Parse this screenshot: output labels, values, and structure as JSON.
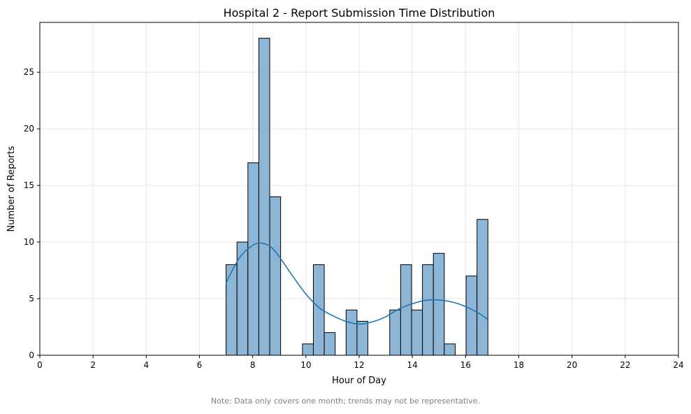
{
  "chart_data": {
    "type": "bar",
    "title": "Hospital 2 - Report Submission Time Distribution",
    "xlabel": "Hour of Day",
    "ylabel": "Number of Reports",
    "xlim": [
      0,
      24
    ],
    "ylim": [
      0,
      29.4
    ],
    "xticks": [
      0,
      2,
      4,
      6,
      8,
      10,
      12,
      14,
      16,
      18,
      20,
      22,
      24
    ],
    "yticks": [
      0,
      5,
      10,
      15,
      20,
      25
    ],
    "grid": true,
    "bar_color": "#8db6d6",
    "bar_edge_color": "#000000",
    "bins": [
      {
        "x0": 7.0,
        "x1": 7.41,
        "count": 8
      },
      {
        "x0": 7.41,
        "x1": 7.82,
        "count": 10
      },
      {
        "x0": 7.82,
        "x1": 8.23,
        "count": 17
      },
      {
        "x0": 8.23,
        "x1": 8.64,
        "count": 28
      },
      {
        "x0": 8.64,
        "x1": 9.05,
        "count": 14
      },
      {
        "x0": 9.05,
        "x1": 9.46,
        "count": 0
      },
      {
        "x0": 9.46,
        "x1": 9.87,
        "count": 0
      },
      {
        "x0": 9.87,
        "x1": 10.28,
        "count": 1
      },
      {
        "x0": 10.28,
        "x1": 10.69,
        "count": 8
      },
      {
        "x0": 10.69,
        "x1": 11.1,
        "count": 2
      },
      {
        "x0": 11.1,
        "x1": 11.51,
        "count": 0
      },
      {
        "x0": 11.51,
        "x1": 11.92,
        "count": 4
      },
      {
        "x0": 11.92,
        "x1": 12.33,
        "count": 3
      },
      {
        "x0": 12.33,
        "x1": 12.74,
        "count": 0
      },
      {
        "x0": 12.74,
        "x1": 13.15,
        "count": 0
      },
      {
        "x0": 13.15,
        "x1": 13.56,
        "count": 4
      },
      {
        "x0": 13.56,
        "x1": 13.97,
        "count": 8
      },
      {
        "x0": 13.97,
        "x1": 14.38,
        "count": 4
      },
      {
        "x0": 14.38,
        "x1": 14.79,
        "count": 8
      },
      {
        "x0": 14.79,
        "x1": 15.2,
        "count": 9
      },
      {
        "x0": 15.2,
        "x1": 15.61,
        "count": 1
      },
      {
        "x0": 15.61,
        "x1": 16.02,
        "count": 0
      },
      {
        "x0": 16.02,
        "x1": 16.43,
        "count": 7
      },
      {
        "x0": 16.43,
        "x1": 16.84,
        "count": 12
      }
    ],
    "kde": {
      "color": "#1f77b4",
      "points": [
        [
          7.0,
          6.4
        ],
        [
          7.5,
          8.6
        ],
        [
          8.0,
          9.7
        ],
        [
          8.35,
          9.9
        ],
        [
          8.8,
          9.3
        ],
        [
          9.5,
          7.0
        ],
        [
          10.0,
          5.4
        ],
        [
          10.5,
          4.2
        ],
        [
          11.0,
          3.5
        ],
        [
          11.5,
          3.0
        ],
        [
          12.0,
          2.75
        ],
        [
          12.5,
          2.95
        ],
        [
          13.0,
          3.4
        ],
        [
          13.5,
          4.1
        ],
        [
          14.0,
          4.55
        ],
        [
          14.5,
          4.85
        ],
        [
          14.9,
          4.9
        ],
        [
          15.5,
          4.7
        ],
        [
          16.0,
          4.3
        ],
        [
          16.5,
          3.7
        ],
        [
          16.84,
          3.15
        ]
      ]
    }
  },
  "note": "Note: Data only covers one month; trends may not be representative."
}
